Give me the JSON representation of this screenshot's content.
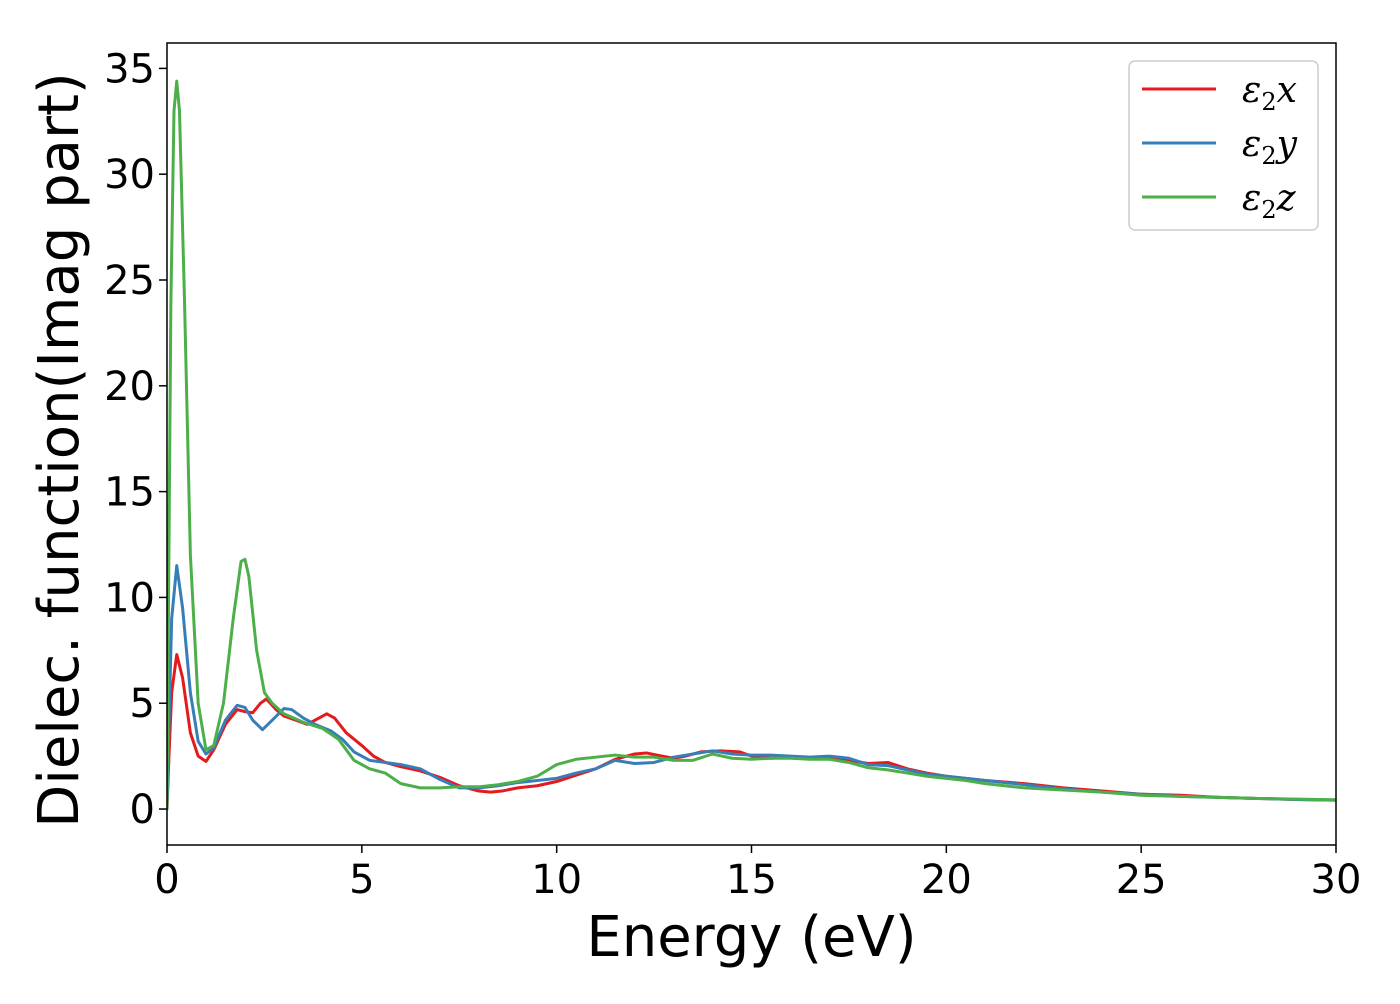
{
  "chart_data": {
    "type": "line",
    "title": "",
    "xlabel": "Energy (eV)",
    "ylabel": "Dielec. function(Imag part)",
    "xlim": [
      0,
      30
    ],
    "ylim": [
      -1.7,
      36.2
    ],
    "xticks": [
      0,
      5,
      10,
      15,
      20,
      25,
      30
    ],
    "yticks": [
      0,
      5,
      10,
      15,
      20,
      25,
      30,
      35
    ],
    "grid": false,
    "legend_position": "top-right",
    "series": [
      {
        "name": "ε2x",
        "legend": {
          "base": "ε",
          "sub": "2",
          "tail": "x"
        },
        "color": "#e41a1c",
        "points": [
          [
            0,
            0
          ],
          [
            0.05,
            2.5
          ],
          [
            0.12,
            5.5
          ],
          [
            0.25,
            7.3
          ],
          [
            0.4,
            6.2
          ],
          [
            0.6,
            3.6
          ],
          [
            0.8,
            2.5
          ],
          [
            1.0,
            2.25
          ],
          [
            1.2,
            2.8
          ],
          [
            1.5,
            4.0
          ],
          [
            1.8,
            4.7
          ],
          [
            2.0,
            4.6
          ],
          [
            2.2,
            4.55
          ],
          [
            2.4,
            5.0
          ],
          [
            2.55,
            5.2
          ],
          [
            2.8,
            4.7
          ],
          [
            3.0,
            4.4
          ],
          [
            3.3,
            4.2
          ],
          [
            3.6,
            4.0
          ],
          [
            3.9,
            4.3
          ],
          [
            4.1,
            4.5
          ],
          [
            4.3,
            4.3
          ],
          [
            4.6,
            3.6
          ],
          [
            5.0,
            3.0
          ],
          [
            5.3,
            2.5
          ],
          [
            5.6,
            2.2
          ],
          [
            6.0,
            2.0
          ],
          [
            6.5,
            1.8
          ],
          [
            7.0,
            1.5
          ],
          [
            7.5,
            1.1
          ],
          [
            8.0,
            0.85
          ],
          [
            8.3,
            0.8
          ],
          [
            8.6,
            0.85
          ],
          [
            9.0,
            1.0
          ],
          [
            9.5,
            1.1
          ],
          [
            10.0,
            1.3
          ],
          [
            10.5,
            1.6
          ],
          [
            11.0,
            1.9
          ],
          [
            11.5,
            2.35
          ],
          [
            12.0,
            2.6
          ],
          [
            12.3,
            2.65
          ],
          [
            12.7,
            2.5
          ],
          [
            13.0,
            2.4
          ],
          [
            13.3,
            2.5
          ],
          [
            13.7,
            2.7
          ],
          [
            14.2,
            2.75
          ],
          [
            14.7,
            2.7
          ],
          [
            15.0,
            2.5
          ],
          [
            15.5,
            2.4
          ],
          [
            16.0,
            2.45
          ],
          [
            16.5,
            2.4
          ],
          [
            17.0,
            2.4
          ],
          [
            17.5,
            2.3
          ],
          [
            18.0,
            2.15
          ],
          [
            18.5,
            2.2
          ],
          [
            19.0,
            1.9
          ],
          [
            19.5,
            1.7
          ],
          [
            20.0,
            1.55
          ],
          [
            20.5,
            1.45
          ],
          [
            21.0,
            1.35
          ],
          [
            22.0,
            1.2
          ],
          [
            23.0,
            1.0
          ],
          [
            24.0,
            0.85
          ],
          [
            25.0,
            0.7
          ],
          [
            26.0,
            0.65
          ],
          [
            27.0,
            0.55
          ],
          [
            28.0,
            0.5
          ],
          [
            29.0,
            0.45
          ],
          [
            30.0,
            0.42
          ]
        ]
      },
      {
        "name": "ε2y",
        "legend": {
          "base": "ε",
          "sub": "2",
          "tail": "y"
        },
        "color": "#377eb8",
        "points": [
          [
            0,
            0
          ],
          [
            0.05,
            4.0
          ],
          [
            0.12,
            9.0
          ],
          [
            0.25,
            11.5
          ],
          [
            0.4,
            9.5
          ],
          [
            0.6,
            5.5
          ],
          [
            0.8,
            3.2
          ],
          [
            1.0,
            2.6
          ],
          [
            1.2,
            2.9
          ],
          [
            1.5,
            4.2
          ],
          [
            1.8,
            4.9
          ],
          [
            2.0,
            4.8
          ],
          [
            2.2,
            4.2
          ],
          [
            2.45,
            3.75
          ],
          [
            2.7,
            4.2
          ],
          [
            3.0,
            4.75
          ],
          [
            3.2,
            4.7
          ],
          [
            3.5,
            4.3
          ],
          [
            3.8,
            4.0
          ],
          [
            4.2,
            3.7
          ],
          [
            4.5,
            3.3
          ],
          [
            4.8,
            2.7
          ],
          [
            5.2,
            2.3
          ],
          [
            5.6,
            2.2
          ],
          [
            6.0,
            2.1
          ],
          [
            6.5,
            1.9
          ],
          [
            7.0,
            1.4
          ],
          [
            7.5,
            1.0
          ],
          [
            8.0,
            1.0
          ],
          [
            8.5,
            1.1
          ],
          [
            9.0,
            1.25
          ],
          [
            9.5,
            1.35
          ],
          [
            10.0,
            1.45
          ],
          [
            10.5,
            1.7
          ],
          [
            11.0,
            1.9
          ],
          [
            11.5,
            2.3
          ],
          [
            12.0,
            2.15
          ],
          [
            12.5,
            2.2
          ],
          [
            13.0,
            2.45
          ],
          [
            13.5,
            2.6
          ],
          [
            14.0,
            2.75
          ],
          [
            14.5,
            2.6
          ],
          [
            15.0,
            2.55
          ],
          [
            15.5,
            2.55
          ],
          [
            16.0,
            2.5
          ],
          [
            16.5,
            2.45
          ],
          [
            17.0,
            2.5
          ],
          [
            17.5,
            2.4
          ],
          [
            18.0,
            2.1
          ],
          [
            18.5,
            2.05
          ],
          [
            19.0,
            1.85
          ],
          [
            19.5,
            1.65
          ],
          [
            20.0,
            1.55
          ],
          [
            20.5,
            1.45
          ],
          [
            21.0,
            1.35
          ],
          [
            22.0,
            1.15
          ],
          [
            23.0,
            0.95
          ],
          [
            24.0,
            0.8
          ],
          [
            25.0,
            0.7
          ],
          [
            26.0,
            0.6
          ],
          [
            27.0,
            0.55
          ],
          [
            28.0,
            0.5
          ],
          [
            29.0,
            0.45
          ],
          [
            30.0,
            0.42
          ]
        ]
      },
      {
        "name": "ε2z",
        "legend": {
          "base": "ε",
          "sub": "2",
          "tail": "z"
        },
        "color": "#4daf4a",
        "points": [
          [
            0,
            0
          ],
          [
            0.04,
            10.0
          ],
          [
            0.1,
            24.0
          ],
          [
            0.18,
            33.0
          ],
          [
            0.25,
            34.4
          ],
          [
            0.32,
            33.0
          ],
          [
            0.45,
            24.0
          ],
          [
            0.6,
            12.0
          ],
          [
            0.8,
            5.0
          ],
          [
            1.0,
            2.8
          ],
          [
            1.2,
            3.0
          ],
          [
            1.45,
            5.0
          ],
          [
            1.7,
            9.0
          ],
          [
            1.9,
            11.7
          ],
          [
            2.0,
            11.8
          ],
          [
            2.1,
            11.0
          ],
          [
            2.3,
            7.5
          ],
          [
            2.5,
            5.5
          ],
          [
            2.7,
            5.0
          ],
          [
            3.0,
            4.5
          ],
          [
            3.5,
            4.1
          ],
          [
            4.0,
            3.8
          ],
          [
            4.4,
            3.3
          ],
          [
            4.8,
            2.3
          ],
          [
            5.2,
            1.9
          ],
          [
            5.6,
            1.7
          ],
          [
            6.0,
            1.2
          ],
          [
            6.5,
            1.0
          ],
          [
            7.0,
            1.0
          ],
          [
            7.5,
            1.05
          ],
          [
            8.0,
            1.05
          ],
          [
            8.5,
            1.15
          ],
          [
            9.0,
            1.3
          ],
          [
            9.5,
            1.55
          ],
          [
            10.0,
            2.1
          ],
          [
            10.5,
            2.35
          ],
          [
            11.0,
            2.45
          ],
          [
            11.5,
            2.55
          ],
          [
            12.0,
            2.45
          ],
          [
            12.5,
            2.45
          ],
          [
            13.0,
            2.3
          ],
          [
            13.5,
            2.3
          ],
          [
            14.0,
            2.6
          ],
          [
            14.5,
            2.4
          ],
          [
            15.0,
            2.35
          ],
          [
            15.5,
            2.4
          ],
          [
            16.0,
            2.4
          ],
          [
            16.5,
            2.35
          ],
          [
            17.0,
            2.35
          ],
          [
            17.5,
            2.2
          ],
          [
            18.0,
            1.95
          ],
          [
            18.5,
            1.85
          ],
          [
            19.0,
            1.7
          ],
          [
            19.5,
            1.55
          ],
          [
            20.0,
            1.45
          ],
          [
            20.5,
            1.35
          ],
          [
            21.0,
            1.2
          ],
          [
            22.0,
            1.0
          ],
          [
            23.0,
            0.9
          ],
          [
            24.0,
            0.8
          ],
          [
            25.0,
            0.65
          ],
          [
            26.0,
            0.6
          ],
          [
            27.0,
            0.55
          ],
          [
            28.0,
            0.5
          ],
          [
            29.0,
            0.47
          ],
          [
            30.0,
            0.44
          ]
        ]
      }
    ]
  }
}
